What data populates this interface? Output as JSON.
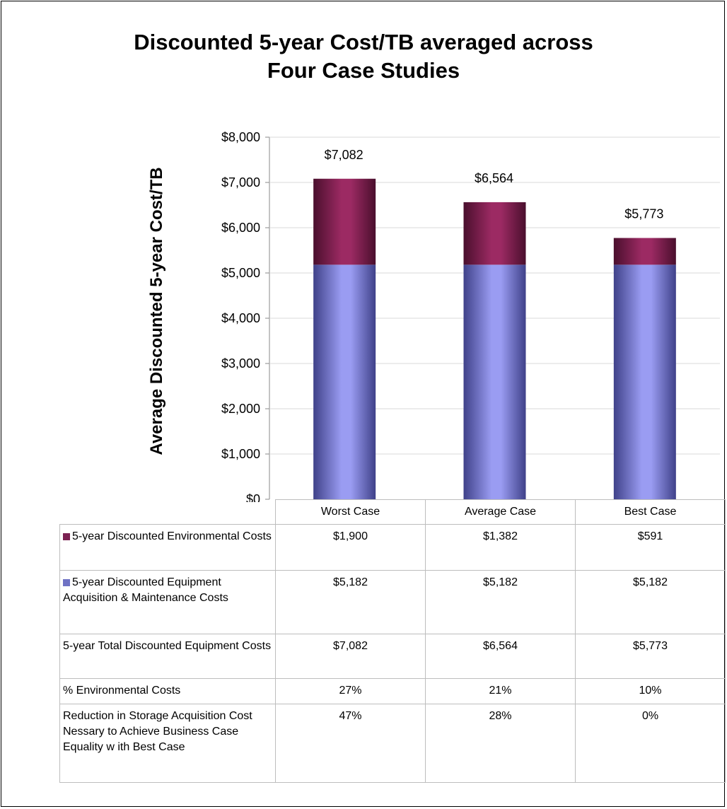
{
  "title_lines": [
    "Discounted 5-year Cost/TB averaged across",
    "Four Case Studies"
  ],
  "colors": {
    "environmental_top": "#9c2a63",
    "environmental_side": "#4a0f2d",
    "equipment_mid": "#9a9cf2",
    "equipment_side": "#3f4189"
  },
  "chart_data": {
    "type": "bar",
    "stacked": true,
    "title": "Discounted 5-year Cost/TB averaged across Four Case Studies",
    "ylabel": "Average Discounted 5-year Cost/TB",
    "xlabel": "",
    "categories": [
      "Worst Case",
      "Average Case",
      "Best Case"
    ],
    "ylim": [
      0,
      8000
    ],
    "yticks": [
      0,
      1000,
      2000,
      3000,
      4000,
      5000,
      6000,
      7000,
      8000
    ],
    "ytick_labels": [
      "$0",
      "$1,000",
      "$2,000",
      "$3,000",
      "$4,000",
      "$5,000",
      "$6,000",
      "$7,000",
      "$8,000"
    ],
    "grid": true,
    "series": [
      {
        "name": "5-year Discounted Equipment Acquisition & Maintenance Costs",
        "values": [
          5182,
          5182,
          5182
        ]
      },
      {
        "name": "5-year Discounted Environmental Costs",
        "values": [
          1900,
          1382,
          591
        ]
      }
    ],
    "total_labels": [
      "$7,082",
      "$6,564",
      "$5,773"
    ],
    "totals": [
      7082,
      6564,
      5773
    ]
  },
  "table": {
    "columns": [
      "Worst Case",
      "Average Case",
      "Best Case"
    ],
    "rows": [
      {
        "key": "env",
        "label": "5-year Discounted Environmental Costs",
        "values": [
          "$1,900",
          "$1,382",
          "$591"
        ]
      },
      {
        "key": "eq",
        "label": "5-year Discounted Equipment Acquisition & Maintenance Costs",
        "values": [
          "$5,182",
          "$5,182",
          "$5,182"
        ]
      },
      {
        "key": "",
        "label": "5-year Total Discounted Equipment Costs",
        "values": [
          "$7,082",
          "$6,564",
          "$5,773"
        ]
      },
      {
        "key": "",
        "label": "% Environmental Costs",
        "values": [
          "27%",
          "21%",
          "10%"
        ]
      },
      {
        "key": "",
        "label": "Reduction in Storage Acquisition Cost Nessary to Achieve Business Case Equality w ith Best Case",
        "values": [
          "47%",
          "28%",
          "0%"
        ]
      }
    ]
  }
}
